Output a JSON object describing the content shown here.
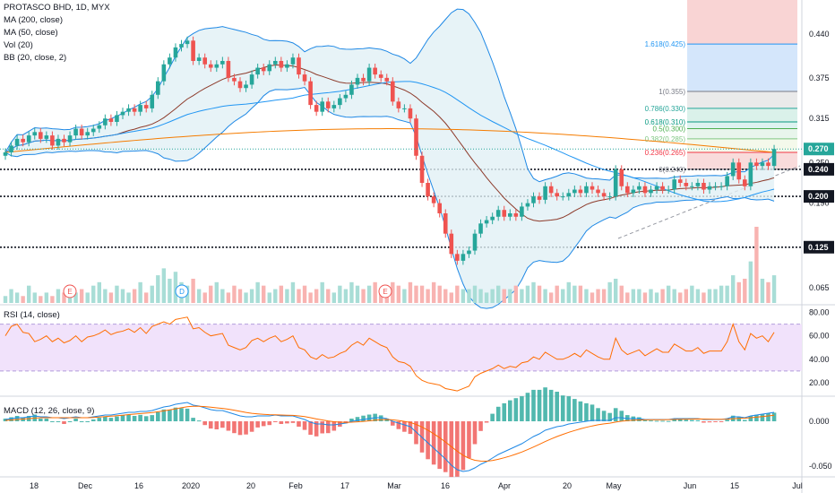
{
  "main_legend": [
    "PROTASCO BHD, 1D, MYX",
    "MA (200, close)",
    "MA (50, close)",
    "Vol (20)",
    "BB (20, close, 2)"
  ],
  "rsi_legend": "RSI (14, close)",
  "macd_legend": "MACD (12, 26, close, 9)",
  "colors": {
    "up": "#26a69a",
    "down": "#ef5350",
    "ma200": "#f57c00",
    "ma50": "#2196f3",
    "bb": "#1e88e5",
    "rsi": "#ff6d00",
    "macd": "#1e88e5",
    "signal": "#ff6d00",
    "hline": "#131722"
  },
  "chart_data": [
    {
      "type": "candlestick",
      "title": "PROTASCO BHD, 1D, MYX",
      "x_ticks": [
        "18",
        "Dec",
        "16",
        "2020",
        "20",
        "Feb",
        "17",
        "Mar",
        "16",
        "Apr",
        "20",
        "May",
        "Jun",
        "15",
        "Jul"
      ],
      "y_ticks": [
        "0.440",
        "0.375",
        "0.315",
        "0.250",
        "0.190",
        "0.065"
      ],
      "last_price": "0.270",
      "levels": [
        "0.240",
        "0.200",
        "0.125"
      ],
      "events": [
        "E",
        "D",
        "E"
      ],
      "fibonacci": [
        {
          "label": "1.618(0.425)",
          "value": 0.425
        },
        {
          "label": "1(0.355)",
          "value": 0.355
        },
        {
          "label": "0.786(0.330)",
          "value": 0.33
        },
        {
          "label": "0.618(0.310)",
          "value": 0.31
        },
        {
          "label": "0.5(0.300)",
          "value": 0.3
        },
        {
          "label": "0.382(0.285)",
          "value": 0.285
        },
        {
          "label": "0.236(0.265)",
          "value": 0.265
        },
        {
          "label": "0(0.240)",
          "value": 0.24
        }
      ],
      "ylim": [
        0.04,
        0.49
      ],
      "close": [
        0.265,
        0.275,
        0.285,
        0.28,
        0.29,
        0.295,
        0.285,
        0.29,
        0.275,
        0.285,
        0.28,
        0.29,
        0.3,
        0.29,
        0.295,
        0.3,
        0.305,
        0.315,
        0.31,
        0.32,
        0.325,
        0.33,
        0.325,
        0.335,
        0.33,
        0.35,
        0.37,
        0.395,
        0.405,
        0.42,
        0.425,
        0.43,
        0.4,
        0.405,
        0.395,
        0.39,
        0.395,
        0.4,
        0.375,
        0.37,
        0.36,
        0.365,
        0.38,
        0.39,
        0.385,
        0.395,
        0.4,
        0.39,
        0.395,
        0.405,
        0.38,
        0.37,
        0.335,
        0.325,
        0.34,
        0.33,
        0.335,
        0.345,
        0.35,
        0.365,
        0.375,
        0.37,
        0.39,
        0.38,
        0.375,
        0.37,
        0.34,
        0.33,
        0.33,
        0.315,
        0.26,
        0.22,
        0.2,
        0.19,
        0.175,
        0.145,
        0.115,
        0.105,
        0.115,
        0.12,
        0.145,
        0.16,
        0.165,
        0.17,
        0.18,
        0.17,
        0.175,
        0.17,
        0.185,
        0.19,
        0.2,
        0.195,
        0.215,
        0.205,
        0.2,
        0.2,
        0.205,
        0.21,
        0.205,
        0.215,
        0.21,
        0.205,
        0.2,
        0.2,
        0.24,
        0.215,
        0.205,
        0.21,
        0.215,
        0.205,
        0.21,
        0.215,
        0.21,
        0.21,
        0.225,
        0.22,
        0.215,
        0.215,
        0.22,
        0.21,
        0.215,
        0.215,
        0.215,
        0.23,
        0.25,
        0.225,
        0.215,
        0.25,
        0.245,
        0.25,
        0.245,
        0.27
      ],
      "volume": [
        2,
        4,
        3,
        2,
        5,
        3,
        2,
        3,
        2,
        4,
        3,
        2,
        3,
        4,
        3,
        5,
        6,
        4,
        3,
        5,
        4,
        3,
        4,
        6,
        3,
        5,
        8,
        10,
        7,
        9,
        6,
        5,
        7,
        4,
        3,
        5,
        6,
        4,
        3,
        5,
        4,
        3,
        4,
        6,
        5,
        3,
        4,
        5,
        4,
        6,
        4,
        5,
        3,
        4,
        6,
        4,
        3,
        5,
        4,
        6,
        5,
        4,
        5,
        6,
        4,
        5,
        6,
        5,
        4,
        6,
        5,
        5,
        4,
        6,
        5,
        4,
        3,
        5,
        4,
        4,
        5,
        4,
        3,
        4,
        5,
        4,
        4,
        5,
        4,
        5,
        6,
        5,
        4,
        3,
        5,
        4,
        6,
        5,
        5,
        4,
        3,
        4,
        4,
        6,
        7,
        5,
        3,
        4,
        4,
        3,
        4,
        3,
        4,
        5,
        4,
        3,
        4,
        5,
        4,
        3,
        4,
        4,
        5,
        5,
        8,
        6,
        7,
        12,
        22,
        7,
        6,
        8
      ]
    },
    {
      "type": "line",
      "title": "RSI (14, close)",
      "y_ticks": [
        "80.00",
        "60.00",
        "40.00",
        "20.00"
      ],
      "band": [
        30,
        70
      ],
      "ylim": [
        10,
        85
      ],
      "values": [
        60,
        68,
        70,
        63,
        62,
        55,
        57,
        60,
        55,
        58,
        54,
        56,
        60,
        55,
        59,
        60,
        62,
        65,
        61,
        63,
        64,
        66,
        63,
        67,
        62,
        68,
        70,
        72,
        70,
        74,
        75,
        76,
        66,
        67,
        63,
        60,
        61,
        62,
        52,
        50,
        48,
        50,
        56,
        58,
        55,
        58,
        60,
        55,
        57,
        60,
        50,
        48,
        42,
        40,
        44,
        41,
        42,
        45,
        47,
        52,
        55,
        52,
        58,
        55,
        52,
        50,
        42,
        38,
        37,
        34,
        26,
        22,
        20,
        19,
        18,
        15,
        14,
        13,
        15,
        17,
        25,
        28,
        30,
        32,
        35,
        32,
        34,
        33,
        37,
        38,
        42,
        40,
        46,
        43,
        40,
        40,
        42,
        45,
        42,
        48,
        45,
        42,
        40,
        40,
        58,
        48,
        44,
        46,
        48,
        43,
        46,
        49,
        46,
        46,
        53,
        50,
        47,
        47,
        50,
        45,
        47,
        47,
        47,
        55,
        70,
        55,
        48,
        62,
        58,
        60,
        55,
        63
      ]
    },
    {
      "type": "line",
      "title": "MACD (12, 26, close, 9)",
      "y_ticks": [
        "0.000",
        "-0.050"
      ],
      "ylim": [
        -0.06,
        0.025
      ],
      "macd": [
        0.002,
        0.003,
        0.004,
        0.004,
        0.005,
        0.006,
        0.005,
        0.005,
        0.004,
        0.004,
        0.003,
        0.004,
        0.005,
        0.004,
        0.004,
        0.005,
        0.006,
        0.007,
        0.007,
        0.008,
        0.009,
        0.01,
        0.01,
        0.011,
        0.011,
        0.012,
        0.014,
        0.016,
        0.017,
        0.019,
        0.02,
        0.021,
        0.018,
        0.017,
        0.015,
        0.013,
        0.012,
        0.012,
        0.01,
        0.008,
        0.006,
        0.005,
        0.005,
        0.006,
        0.006,
        0.006,
        0.007,
        0.006,
        0.006,
        0.006,
        0.004,
        0.002,
        -0.001,
        -0.003,
        -0.003,
        -0.004,
        -0.004,
        -0.003,
        -0.002,
        0.0,
        0.001,
        0.002,
        0.003,
        0.004,
        0.004,
        0.003,
        0.0,
        -0.002,
        -0.004,
        -0.006,
        -0.012,
        -0.018,
        -0.024,
        -0.03,
        -0.036,
        -0.042,
        -0.049,
        -0.054,
        -0.056,
        -0.055,
        -0.052,
        -0.048,
        -0.045,
        -0.041,
        -0.037,
        -0.034,
        -0.031,
        -0.028,
        -0.025,
        -0.021,
        -0.017,
        -0.014,
        -0.01,
        -0.008,
        -0.006,
        -0.005,
        -0.003,
        -0.002,
        -0.001,
        0.0,
        0.001,
        0.001,
        0.001,
        0.001,
        0.004,
        0.004,
        0.003,
        0.003,
        0.003,
        0.002,
        0.002,
        0.002,
        0.002,
        0.002,
        0.003,
        0.003,
        0.003,
        0.003,
        0.003,
        0.002,
        0.002,
        0.002,
        0.002,
        0.003,
        0.005,
        0.005,
        0.004,
        0.006,
        0.007,
        0.008,
        0.009,
        0.01
      ],
      "signal": [
        0.001,
        0.0015,
        0.002,
        0.0025,
        0.003,
        0.0035,
        0.004,
        0.004,
        0.004,
        0.004,
        0.004,
        0.004,
        0.004,
        0.004,
        0.004,
        0.0043,
        0.0047,
        0.0052,
        0.0057,
        0.0062,
        0.0068,
        0.0075,
        0.008,
        0.0086,
        0.0091,
        0.0097,
        0.0106,
        0.0116,
        0.0127,
        0.0139,
        0.0151,
        0.0163,
        0.0167,
        0.0167,
        0.0164,
        0.0157,
        0.015,
        0.0144,
        0.0135,
        0.0124,
        0.0111,
        0.0099,
        0.0089,
        0.0083,
        0.0078,
        0.0074,
        0.0073,
        0.007,
        0.0068,
        0.0066,
        0.006,
        0.0052,
        0.004,
        0.0026,
        0.0015,
        0.0004,
        -0.0005,
        -0.001,
        -0.0012,
        -0.001,
        -0.0006,
        -0.0001,
        0.0005,
        0.0012,
        0.0018,
        0.002,
        0.0016,
        0.0009,
        -0.0001,
        -0.0013,
        -0.0035,
        -0.0064,
        -0.0099,
        -0.0139,
        -0.0183,
        -0.0231,
        -0.0283,
        -0.0334,
        -0.0379,
        -0.0413,
        -0.0435,
        -0.0444,
        -0.0445,
        -0.0438,
        -0.0424,
        -0.0407,
        -0.0388,
        -0.0366,
        -0.0343,
        -0.0316,
        -0.0287,
        -0.0257,
        -0.0226,
        -0.0197,
        -0.017,
        -0.0146,
        -0.0123,
        -0.0103,
        -0.0084,
        -0.0067,
        -0.0052,
        -0.0039,
        -0.0029,
        -0.0021,
        -0.0009,
        0.0001,
        0.0007,
        0.0012,
        0.0015,
        0.0016,
        0.0017,
        0.0018,
        0.0018,
        0.0019,
        0.0021,
        0.0023,
        0.0024,
        0.0025,
        0.0026,
        0.0025,
        0.0024,
        0.0023,
        0.0023,
        0.0024,
        0.0029,
        0.0033,
        0.0035,
        0.004,
        0.0046,
        0.0053,
        0.006,
        0.0068
      ]
    }
  ]
}
